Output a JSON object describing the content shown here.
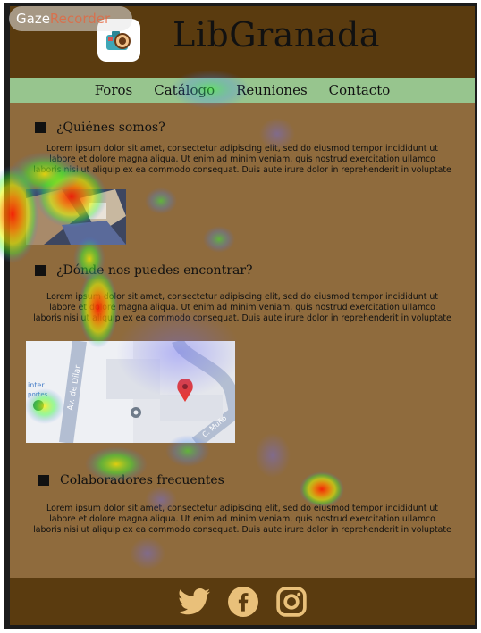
{
  "recorder": {
    "part1": "Gaze",
    "part2": "Recorder"
  },
  "header": {
    "title": "LibGranada",
    "logo_icon": "camera-logo-icon"
  },
  "nav": {
    "items": [
      "Foros",
      "Catálogo",
      "Reuniones",
      "Contacto"
    ]
  },
  "sections": [
    {
      "heading": "¿Quiénes somos?",
      "lines": [
        "Lorem ipsum dolor sit amet, consectetur adipiscing elit, sed do eiusmod tempor incididunt ut",
        "labore et dolore magna aliqua. Ut enim ad minim veniam, quis nostrud exercitation ullamco",
        "laboris nisi ut aliquip ex ea commodo consequat. Duis aute irure dolor in reprehenderit in voluptate"
      ]
    },
    {
      "heading": "¿Dónde nos puedes encontrar?",
      "lines": [
        "Lorem ipsum dolor sit amet, consectetur adipiscing elit, sed do eiusmod tempor incididunt ut",
        "labore et dolore magna aliqua. Ut enim ad minim veniam, quis nostrud exercitation ullamco",
        "laboris nisi ut aliquip ex ea commodo consequat. Duis aute irure dolor in reprehenderit in voluptate"
      ]
    },
    {
      "heading": "Colaboradores frecuentes",
      "lines": [
        "Lorem ipsum dolor sit amet, consectetur adipiscing elit, sed do eiusmod tempor incididunt ut",
        "labore et dolore magna aliqua. Ut enim ad minim veniam, quis nostrud exercitation ullamco",
        "laboris nisi ut aliquip ex ea commodo consequat. Duis aute irure dolor in reprehenderit in voluptate"
      ]
    }
  ],
  "map": {
    "street_label": "Av. de Dílar",
    "place_label_1": "inter",
    "place_label_2": "portes",
    "street_label_2": "C. Muño"
  },
  "footer": {
    "icons": [
      "twitter-icon",
      "facebook-icon",
      "instagram-icon"
    ]
  },
  "colors": {
    "header_bg": "#5a3b0f",
    "nav_bg": "#97c58e",
    "page_bg": "#8f6b3d"
  }
}
